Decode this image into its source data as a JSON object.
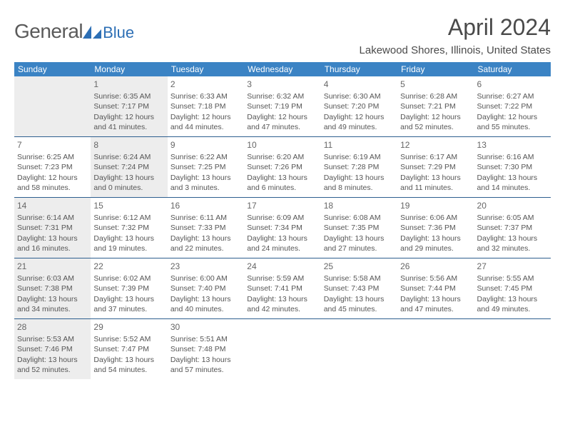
{
  "brand": {
    "part1": "General",
    "part2": "Blue"
  },
  "title": "April 2024",
  "location": "Lakewood Shores, Illinois, United States",
  "colors": {
    "header_bg": "#3b83c4",
    "header_text": "#ffffff",
    "week_divider": "#2d5f8f",
    "shaded_bg": "#ededed",
    "text": "#4a4a4a",
    "logo_blue": "#2d6fb5"
  },
  "weekdays": [
    "Sunday",
    "Monday",
    "Tuesday",
    "Wednesday",
    "Thursday",
    "Friday",
    "Saturday"
  ],
  "weeks": [
    [
      {
        "day": "",
        "shaded": true
      },
      {
        "day": "1",
        "shaded": true,
        "sunrise": "Sunrise: 6:35 AM",
        "sunset": "Sunset: 7:17 PM",
        "daylight1": "Daylight: 12 hours",
        "daylight2": "and 41 minutes."
      },
      {
        "day": "2",
        "shaded": false,
        "sunrise": "Sunrise: 6:33 AM",
        "sunset": "Sunset: 7:18 PM",
        "daylight1": "Daylight: 12 hours",
        "daylight2": "and 44 minutes."
      },
      {
        "day": "3",
        "shaded": false,
        "sunrise": "Sunrise: 6:32 AM",
        "sunset": "Sunset: 7:19 PM",
        "daylight1": "Daylight: 12 hours",
        "daylight2": "and 47 minutes."
      },
      {
        "day": "4",
        "shaded": false,
        "sunrise": "Sunrise: 6:30 AM",
        "sunset": "Sunset: 7:20 PM",
        "daylight1": "Daylight: 12 hours",
        "daylight2": "and 49 minutes."
      },
      {
        "day": "5",
        "shaded": false,
        "sunrise": "Sunrise: 6:28 AM",
        "sunset": "Sunset: 7:21 PM",
        "daylight1": "Daylight: 12 hours",
        "daylight2": "and 52 minutes."
      },
      {
        "day": "6",
        "shaded": false,
        "sunrise": "Sunrise: 6:27 AM",
        "sunset": "Sunset: 7:22 PM",
        "daylight1": "Daylight: 12 hours",
        "daylight2": "and 55 minutes."
      }
    ],
    [
      {
        "day": "7",
        "shaded": false,
        "sunrise": "Sunrise: 6:25 AM",
        "sunset": "Sunset: 7:23 PM",
        "daylight1": "Daylight: 12 hours",
        "daylight2": "and 58 minutes."
      },
      {
        "day": "8",
        "shaded": true,
        "sunrise": "Sunrise: 6:24 AM",
        "sunset": "Sunset: 7:24 PM",
        "daylight1": "Daylight: 13 hours",
        "daylight2": "and 0 minutes."
      },
      {
        "day": "9",
        "shaded": false,
        "sunrise": "Sunrise: 6:22 AM",
        "sunset": "Sunset: 7:25 PM",
        "daylight1": "Daylight: 13 hours",
        "daylight2": "and 3 minutes."
      },
      {
        "day": "10",
        "shaded": false,
        "sunrise": "Sunrise: 6:20 AM",
        "sunset": "Sunset: 7:26 PM",
        "daylight1": "Daylight: 13 hours",
        "daylight2": "and 6 minutes."
      },
      {
        "day": "11",
        "shaded": false,
        "sunrise": "Sunrise: 6:19 AM",
        "sunset": "Sunset: 7:28 PM",
        "daylight1": "Daylight: 13 hours",
        "daylight2": "and 8 minutes."
      },
      {
        "day": "12",
        "shaded": false,
        "sunrise": "Sunrise: 6:17 AM",
        "sunset": "Sunset: 7:29 PM",
        "daylight1": "Daylight: 13 hours",
        "daylight2": "and 11 minutes."
      },
      {
        "day": "13",
        "shaded": false,
        "sunrise": "Sunrise: 6:16 AM",
        "sunset": "Sunset: 7:30 PM",
        "daylight1": "Daylight: 13 hours",
        "daylight2": "and 14 minutes."
      }
    ],
    [
      {
        "day": "14",
        "shaded": true,
        "sunrise": "Sunrise: 6:14 AM",
        "sunset": "Sunset: 7:31 PM",
        "daylight1": "Daylight: 13 hours",
        "daylight2": "and 16 minutes."
      },
      {
        "day": "15",
        "shaded": false,
        "sunrise": "Sunrise: 6:12 AM",
        "sunset": "Sunset: 7:32 PM",
        "daylight1": "Daylight: 13 hours",
        "daylight2": "and 19 minutes."
      },
      {
        "day": "16",
        "shaded": false,
        "sunrise": "Sunrise: 6:11 AM",
        "sunset": "Sunset: 7:33 PM",
        "daylight1": "Daylight: 13 hours",
        "daylight2": "and 22 minutes."
      },
      {
        "day": "17",
        "shaded": false,
        "sunrise": "Sunrise: 6:09 AM",
        "sunset": "Sunset: 7:34 PM",
        "daylight1": "Daylight: 13 hours",
        "daylight2": "and 24 minutes."
      },
      {
        "day": "18",
        "shaded": false,
        "sunrise": "Sunrise: 6:08 AM",
        "sunset": "Sunset: 7:35 PM",
        "daylight1": "Daylight: 13 hours",
        "daylight2": "and 27 minutes."
      },
      {
        "day": "19",
        "shaded": false,
        "sunrise": "Sunrise: 6:06 AM",
        "sunset": "Sunset: 7:36 PM",
        "daylight1": "Daylight: 13 hours",
        "daylight2": "and 29 minutes."
      },
      {
        "day": "20",
        "shaded": false,
        "sunrise": "Sunrise: 6:05 AM",
        "sunset": "Sunset: 7:37 PM",
        "daylight1": "Daylight: 13 hours",
        "daylight2": "and 32 minutes."
      }
    ],
    [
      {
        "day": "21",
        "shaded": true,
        "sunrise": "Sunrise: 6:03 AM",
        "sunset": "Sunset: 7:38 PM",
        "daylight1": "Daylight: 13 hours",
        "daylight2": "and 34 minutes."
      },
      {
        "day": "22",
        "shaded": false,
        "sunrise": "Sunrise: 6:02 AM",
        "sunset": "Sunset: 7:39 PM",
        "daylight1": "Daylight: 13 hours",
        "daylight2": "and 37 minutes."
      },
      {
        "day": "23",
        "shaded": false,
        "sunrise": "Sunrise: 6:00 AM",
        "sunset": "Sunset: 7:40 PM",
        "daylight1": "Daylight: 13 hours",
        "daylight2": "and 40 minutes."
      },
      {
        "day": "24",
        "shaded": false,
        "sunrise": "Sunrise: 5:59 AM",
        "sunset": "Sunset: 7:41 PM",
        "daylight1": "Daylight: 13 hours",
        "daylight2": "and 42 minutes."
      },
      {
        "day": "25",
        "shaded": false,
        "sunrise": "Sunrise: 5:58 AM",
        "sunset": "Sunset: 7:43 PM",
        "daylight1": "Daylight: 13 hours",
        "daylight2": "and 45 minutes."
      },
      {
        "day": "26",
        "shaded": false,
        "sunrise": "Sunrise: 5:56 AM",
        "sunset": "Sunset: 7:44 PM",
        "daylight1": "Daylight: 13 hours",
        "daylight2": "and 47 minutes."
      },
      {
        "day": "27",
        "shaded": false,
        "sunrise": "Sunrise: 5:55 AM",
        "sunset": "Sunset: 7:45 PM",
        "daylight1": "Daylight: 13 hours",
        "daylight2": "and 49 minutes."
      }
    ],
    [
      {
        "day": "28",
        "shaded": true,
        "sunrise": "Sunrise: 5:53 AM",
        "sunset": "Sunset: 7:46 PM",
        "daylight1": "Daylight: 13 hours",
        "daylight2": "and 52 minutes."
      },
      {
        "day": "29",
        "shaded": false,
        "sunrise": "Sunrise: 5:52 AM",
        "sunset": "Sunset: 7:47 PM",
        "daylight1": "Daylight: 13 hours",
        "daylight2": "and 54 minutes."
      },
      {
        "day": "30",
        "shaded": false,
        "sunrise": "Sunrise: 5:51 AM",
        "sunset": "Sunset: 7:48 PM",
        "daylight1": "Daylight: 13 hours",
        "daylight2": "and 57 minutes."
      },
      {
        "day": "",
        "shaded": false
      },
      {
        "day": "",
        "shaded": false
      },
      {
        "day": "",
        "shaded": false
      },
      {
        "day": "",
        "shaded": false
      }
    ]
  ]
}
